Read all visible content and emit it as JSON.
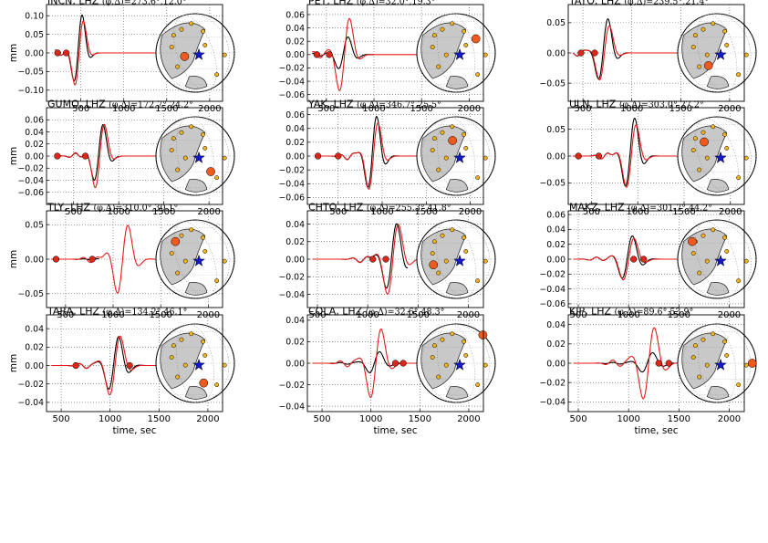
{
  "figure": {
    "ylabel": "mm",
    "xlabel": "time, sec",
    "colors": {
      "observed": "#000000",
      "synthetic": "#e8191a",
      "marker_red": "#d9281a",
      "station_large": "#f05a1e",
      "station_small": "#f2b41a",
      "epicenter": "#1419c8",
      "land": "#c8c8c8",
      "ocean": "#ffffff",
      "grid": "#888888"
    }
  },
  "chart_data": [
    {
      "type": "line",
      "title": "INCN, LHZ",
      "angles": "(φ,Δ)=273.6°,12.0°",
      "xlim": [
        100,
        2150
      ],
      "ylim": [
        -0.13,
        0.13
      ],
      "xticks": [
        500,
        1000,
        1500,
        2000
      ],
      "yticks": [
        -0.1,
        -0.05,
        0.0,
        0.05,
        0.1
      ],
      "ytick_labels": [
        "−0.10",
        "−0.05",
        "0.00",
        "0.05",
        "0.10"
      ],
      "obs_range": [
        200,
        800
      ],
      "syn_range": [
        200,
        1700
      ],
      "arrival": 480,
      "amp": 0.12,
      "spread": 110,
      "syn_amp": 0.12,
      "markers": [
        230,
        330
      ],
      "map": {
        "large": [
          0.35,
          0.55
        ],
        "tilt": -20
      }
    },
    {
      "type": "line",
      "title": "PET, LHZ",
      "angles": "(φ,Δ)=32.0°,19.3°",
      "xlim": [
        300,
        2150
      ],
      "ylim": [
        -0.07,
        0.075
      ],
      "xticks": [
        500,
        1000,
        1500,
        2000
      ],
      "yticks": [
        -0.06,
        -0.04,
        -0.02,
        0.0,
        0.02,
        0.04,
        0.06
      ],
      "ytick_labels": [
        "−0.06",
        "−0.04",
        "−0.02",
        "0.00",
        "0.02",
        "0.04",
        "0.06"
      ],
      "obs_range": [
        350,
        1000
      ],
      "syn_range": [
        350,
        1700
      ],
      "arrival": 690,
      "amp": 0.03,
      "spread": 130,
      "syn_amp": 0.07,
      "markers": [
        400,
        530
      ],
      "map": {
        "large": [
          0.78,
          0.3
        ],
        "tilt": -10
      }
    },
    {
      "type": "line",
      "title": "TATO, LHZ",
      "angles": "(φ,Δ)=239.5°,21.4°",
      "xlim": [
        350,
        2150
      ],
      "ylim": [
        -0.08,
        0.08
      ],
      "xticks": [
        500,
        1000,
        1500,
        2000
      ],
      "yticks": [
        -0.05,
        0.0,
        0.05
      ],
      "ytick_labels": [
        "−0.05",
        "0.00",
        "0.05"
      ],
      "obs_range": [
        400,
        1050
      ],
      "syn_range": [
        400,
        1700
      ],
      "arrival": 720,
      "amp": 0.065,
      "spread": 120,
      "syn_amp": 0.06,
      "markers": [
        480,
        620
      ],
      "map": {
        "large": [
          0.38,
          0.68
        ],
        "tilt": -15
      }
    },
    {
      "type": "line",
      "title": "GUMO, LHZ",
      "angles": "(φ,Δ)=172.7°,24.2°",
      "xlim": [
        200,
        2150
      ],
      "ylim": [
        -0.08,
        0.08
      ],
      "xticks": [
        500,
        1000,
        1500,
        2000
      ],
      "yticks": [
        -0.06,
        -0.04,
        -0.02,
        0.0,
        0.02,
        0.04,
        0.06
      ],
      "ytick_labels": [
        "−0.06",
        "−0.04",
        "−0.02",
        "0.00",
        "0.02",
        "0.04",
        "0.06"
      ],
      "obs_range": [
        300,
        1000
      ],
      "syn_range": [
        300,
        1700
      ],
      "arrival": 790,
      "amp": 0.06,
      "spread": 120,
      "syn_amp": 0.07,
      "markers": [
        320,
        630
      ],
      "map": {
        "large": [
          0.72,
          0.72
        ],
        "tilt": -10
      }
    },
    {
      "type": "line",
      "title": "YAK, LHZ",
      "angles": "(φ,Δ)=346.7°,25.5°",
      "xlim": [
        150,
        2150
      ],
      "ylim": [
        -0.07,
        0.07
      ],
      "xticks": [
        500,
        1000,
        1500,
        2000
      ],
      "yticks": [
        -0.06,
        -0.04,
        -0.02,
        0.0,
        0.02,
        0.04,
        0.06
      ],
      "ytick_labels": [
        "−0.06",
        "−0.04",
        "−0.02",
        "0.00",
        "0.02",
        "0.04",
        "0.06"
      ],
      "obs_range": [
        250,
        1500
      ],
      "syn_range": [
        250,
        1500
      ],
      "arrival": 900,
      "amp": 0.065,
      "spread": 130,
      "syn_amp": 0.062,
      "markers": [
        270,
        500
      ],
      "map": {
        "large": [
          0.45,
          0.28
        ],
        "tilt": -10
      }
    },
    {
      "type": "line",
      "title": "ULN, LHZ",
      "angles": "(φ,Δ)=303.0°,27.2°",
      "xlim": [
        250,
        2150
      ],
      "ylim": [
        -0.09,
        0.09
      ],
      "xticks": [
        500,
        1000,
        1500,
        2000
      ],
      "yticks": [
        -0.05,
        0.0,
        0.05
      ],
      "ytick_labels": [
        "−0.05",
        "0.00",
        "0.05"
      ],
      "obs_range": [
        300,
        1500
      ],
      "syn_range": [
        300,
        1500
      ],
      "arrival": 930,
      "amp": 0.08,
      "spread": 130,
      "syn_amp": 0.075,
      "markers": [
        360,
        580
      ],
      "map": {
        "large": [
          0.32,
          0.3
        ],
        "tilt": -20
      }
    },
    {
      "type": "line",
      "title": "TLY, LHZ",
      "angles": "(φ,Δ)=310.0°,30.1°",
      "xlim": [
        300,
        2150
      ],
      "ylim": [
        -0.07,
        0.07
      ],
      "xticks": [
        500,
        1000,
        1500,
        2000
      ],
      "yticks": [
        -0.05,
        0.0,
        0.05
      ],
      "ytick_labels": [
        "−0.05",
        "0.00",
        "0.05"
      ],
      "obs_range": [
        350,
        850
      ],
      "syn_range": [
        350,
        1700
      ],
      "arrival": 1100,
      "amp": 0.01,
      "spread": 150,
      "syn_amp": 0.06,
      "markers": [
        400,
        780
      ],
      "map": {
        "large": [
          0.22,
          0.25
        ],
        "tilt": -20
      }
    },
    {
      "type": "line",
      "title": "CHTO, LHZ",
      "angles": "(φ,Δ)=255.3°,41.8°",
      "xlim": [
        400,
        2150
      ],
      "ylim": [
        -0.055,
        0.055
      ],
      "xticks": [
        500,
        1000,
        1500,
        2000
      ],
      "yticks": [
        -0.04,
        -0.02,
        0.0,
        0.02,
        0.04
      ],
      "ytick_labels": [
        "−0.04",
        "−0.02",
        "0.00",
        "0.02",
        "0.04"
      ],
      "obs_range": [
        450,
        1400
      ],
      "syn_range": [
        450,
        1700
      ],
      "arrival": 1250,
      "amp": 0.045,
      "spread": 140,
      "syn_amp": 0.05,
      "markers": [
        1050,
        1180
      ],
      "map": {
        "large": [
          0.18,
          0.58
        ],
        "tilt": -15
      }
    },
    {
      "type": "line",
      "title": "MAKZ, LHZ",
      "angles": "(φ,Δ)=301.7°,44.2°",
      "xlim": [
        400,
        2150
      ],
      "ylim": [
        -0.065,
        0.065
      ],
      "xticks": [
        500,
        1000,
        1500,
        2000
      ],
      "yticks": [
        -0.06,
        -0.04,
        -0.02,
        0.0,
        0.02,
        0.04,
        0.06
      ],
      "ytick_labels": [
        "−0.06",
        "−0.04",
        "−0.02",
        "0.00",
        "0.02",
        "0.04",
        "0.06"
      ],
      "obs_range": [
        450,
        1700
      ],
      "syn_range": [
        450,
        1700
      ],
      "arrival": 1000,
      "amp": 0.035,
      "spread": 140,
      "syn_amp": 0.035,
      "markers": [
        1050,
        1150
      ],
      "map": {
        "large": [
          0.15,
          0.25
        ],
        "tilt": -20
      }
    },
    {
      "type": "line",
      "title": "TARA, LHZ",
      "angles": "(φ,Δ)=134.2°,46.1°",
      "xlim": [
        350,
        2150
      ],
      "ylim": [
        -0.05,
        0.055
      ],
      "xticks": [
        500,
        1000,
        1500,
        2000
      ],
      "yticks": [
        -0.04,
        -0.02,
        0.0,
        0.02,
        0.04
      ],
      "ytick_labels": [
        "−0.04",
        "−0.02",
        "0.00",
        "0.02",
        "0.04"
      ],
      "obs_range": [
        400,
        1350
      ],
      "syn_range": [
        400,
        1700
      ],
      "arrival": 1050,
      "amp": 0.035,
      "spread": 140,
      "syn_amp": 0.04,
      "markers": [
        650,
        1200
      ],
      "map": {
        "large": [
          0.62,
          0.78
        ],
        "tilt": -10
      }
    },
    {
      "type": "line",
      "title": "COLA, LHZ",
      "angles": "(φ,Δ)=32.6°,48.3°",
      "xlim": [
        350,
        2150
      ],
      "ylim": [
        -0.045,
        0.045
      ],
      "xticks": [
        500,
        1000,
        1500,
        2000
      ],
      "yticks": [
        -0.04,
        -0.02,
        0.0,
        0.02,
        0.04
      ],
      "ytick_labels": [
        "−0.04",
        "−0.02",
        "0.00",
        "0.02",
        "0.04"
      ],
      "obs_range": [
        400,
        1400
      ],
      "syn_range": [
        400,
        1700
      ],
      "arrival": 1050,
      "amp": 0.012,
      "spread": 140,
      "syn_amp": 0.04,
      "markers": [
        1250,
        1330
      ],
      "map": {
        "large": [
          0.88,
          0.1
        ],
        "tilt": -10
      }
    },
    {
      "type": "line",
      "title": "KIP, LHZ",
      "angles": "(φ,Δ)=89.6°,53.9°",
      "xlim": [
        400,
        2150
      ],
      "ylim": [
        -0.05,
        0.05
      ],
      "xticks": [
        500,
        1000,
        1500,
        2000
      ],
      "yticks": [
        -0.04,
        -0.02,
        0.0,
        0.02,
        0.04
      ],
      "ytick_labels": [
        "−0.04",
        "−0.02",
        "0.00",
        "0.02",
        "0.04"
      ],
      "obs_range": [
        450,
        1450
      ],
      "syn_range": [
        450,
        1900
      ],
      "arrival": 1200,
      "amp": 0.012,
      "spread": 150,
      "syn_amp": 0.045,
      "markers": [
        1300,
        1400
      ],
      "map": {
        "large": [
          1.0,
          0.5
        ],
        "tilt": -10
      }
    }
  ]
}
